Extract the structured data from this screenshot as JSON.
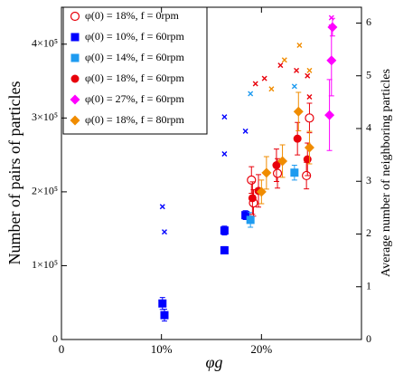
{
  "chart_data": {
    "type": "scatter",
    "x_label": "φg",
    "y_label": "Number of pairs of particles",
    "y2_label": "Average number of neighboring particles",
    "xlim": [
      0,
      30
    ],
    "xticks": [
      0,
      {
        "value": 10,
        "label": "10%"
      },
      {
        "value": 20,
        "label": "20%"
      }
    ],
    "ylim": [
      0,
      450000
    ],
    "yticks": [
      0,
      {
        "value": 100000,
        "label": "1×10⁵"
      },
      {
        "value": 200000,
        "label": "2×10⁵"
      },
      {
        "value": 300000,
        "label": "3×10⁵"
      },
      {
        "value": 400000,
        "label": "4×10⁵"
      }
    ],
    "y2lim": [
      0,
      6.3
    ],
    "y2ticks": [
      0,
      1,
      2,
      3,
      4,
      5,
      6
    ],
    "legend": "upper left",
    "series": [
      {
        "name": "φ(0) = 18%, f = 0rpm",
        "color": "#e8000b",
        "marker": "circle-open",
        "x": [
          19.0,
          19.2,
          21.6,
          24.8,
          24.5
        ],
        "values": [
          216000,
          185000,
          225000,
          300000,
          222000
        ],
        "errors": [
          18000,
          18000,
          20000,
          20000,
          18000
        ]
      },
      {
        "name": "φ(0) = 10%, f = 60rpm",
        "color": "#0000ff",
        "marker": "square",
        "x": [
          10.1,
          10.3,
          16.3,
          16.3,
          18.4
        ],
        "values": [
          48800,
          33000,
          147600,
          120800,
          168400
        ],
        "errors": [
          8000,
          8000,
          6000,
          5000,
          6000
        ]
      },
      {
        "name": "φ(0) = 14%, f = 60rpm",
        "color": "#1e9bf0",
        "marker": "square",
        "x": [
          18.9,
          23.3
        ],
        "values": [
          162000,
          226000
        ],
        "errors": [
          10000,
          10000
        ]
      },
      {
        "name": "φ(0) = 18%, f = 60rpm",
        "color": "#e8000b",
        "marker": "circle",
        "x": [
          19.1,
          19.7,
          21.5,
          23.6,
          24.6
        ],
        "values": [
          191500,
          201300,
          236000,
          272000,
          244000
        ],
        "errors": [
          22000,
          22000,
          22000,
          22000,
          22000
        ]
      },
      {
        "name": "φ(0) = 27%, f = 60rpm",
        "color": "#ff00ff",
        "marker": "diamond",
        "x": [
          27.1,
          27.0,
          26.8
        ],
        "values": [
          423000,
          378000,
          304000
        ],
        "errors": [
          12000,
          48000,
          48000
        ]
      },
      {
        "name": "φ(0) = 18%, f = 80rpm",
        "color": "#f08c00",
        "marker": "diamond",
        "x": [
          20.0,
          20.5,
          22.1,
          23.7,
          24.8
        ],
        "values": [
          200000,
          225700,
          241600,
          308700,
          259900
        ],
        "errors": [
          16000,
          22000,
          22000,
          26000,
          22000
        ]
      }
    ],
    "y2_series": [
      {
        "color": "#0000ff",
        "axis": "y2",
        "x": [
          10.1,
          10.3,
          16.3,
          16.3,
          18.4
        ],
        "values": [
          2.52,
          2.04,
          4.22,
          3.52,
          3.95
        ]
      },
      {
        "color": "#1e9bf0",
        "axis": "y2",
        "x": [
          18.9,
          23.3
        ],
        "values": [
          4.66,
          4.8
        ]
      },
      {
        "color": "#e8000b",
        "axis": "y2",
        "x": [
          19.4,
          20.3,
          21.9,
          23.5,
          24.6,
          24.8
        ],
        "values": [
          4.85,
          4.95,
          5.2,
          5.1,
          5.0,
          4.6
        ]
      },
      {
        "color": "#f08c00",
        "axis": "y2",
        "x": [
          21.0,
          22.3,
          23.8,
          24.8
        ],
        "values": [
          4.75,
          5.3,
          5.58,
          5.1
        ]
      },
      {
        "color": "#ff00ff",
        "axis": "y2",
        "x": [
          27.0
        ],
        "values": [
          6.1
        ]
      }
    ]
  }
}
